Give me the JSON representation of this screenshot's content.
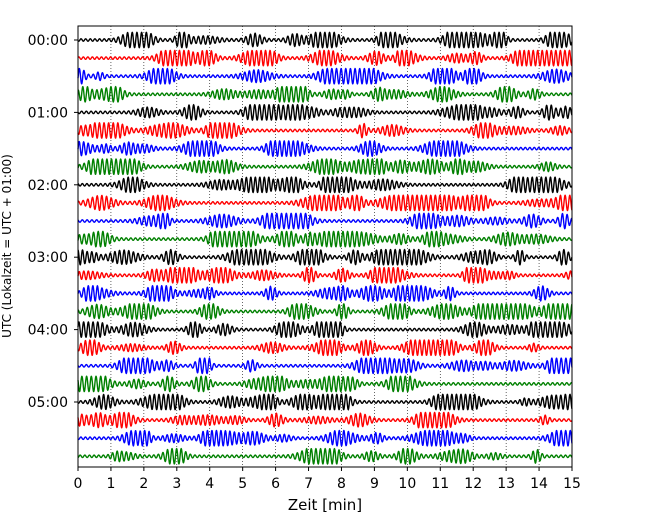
{
  "chart_data": {
    "type": "line",
    "title": "",
    "xlabel": "Zeit  [min]",
    "ylabel": "UTC (Lokalzeit = UTC + 01:00)",
    "xlim": [
      0,
      15
    ],
    "x_ticks": [
      "0",
      "1",
      "2",
      "3",
      "4",
      "5",
      "6",
      "7",
      "8",
      "9",
      "10",
      "11",
      "12",
      "13",
      "14",
      "15"
    ],
    "y_tick_labels": [
      "00:00",
      "01:00",
      "02:00",
      "03:00",
      "04:00",
      "05:00"
    ],
    "traces_per_hour": 4,
    "trace_minutes": 15,
    "trace_count": 24,
    "grid": "vertical dotted at each minute",
    "trace_colors": [
      "#000000",
      "#ff0000",
      "#0000ff",
      "#008000"
    ],
    "trace_start_labels": [
      "00:00",
      "00:15",
      "00:30",
      "00:45",
      "01:00",
      "01:15",
      "01:30",
      "01:45",
      "02:00",
      "02:15",
      "02:30",
      "02:45",
      "03:00",
      "03:15",
      "03:30",
      "03:45",
      "04:00",
      "04:15",
      "04:30",
      "04:45",
      "05:00",
      "05:15",
      "05:30",
      "05:45"
    ]
  }
}
